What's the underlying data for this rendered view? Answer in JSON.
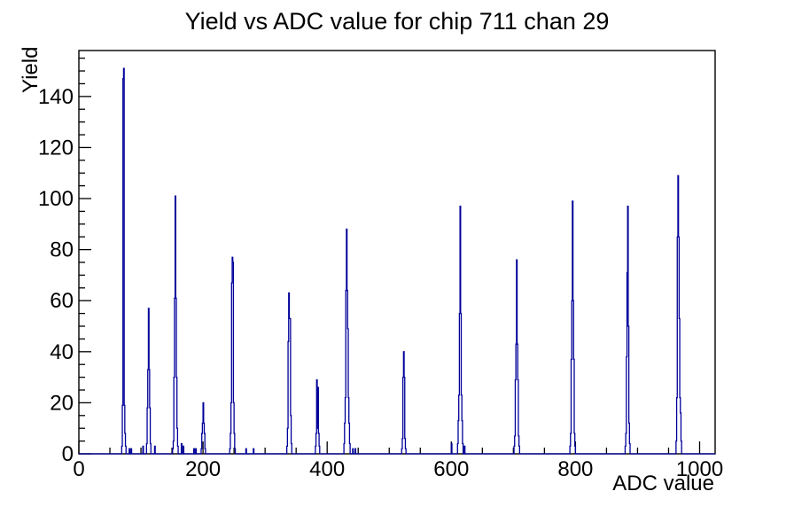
{
  "title": "Yield vs ADC value for chip 711 chan 29",
  "chart_data": {
    "type": "bar",
    "title": "Yield vs ADC value for chip 711 chan 29",
    "xlabel": "ADC value",
    "ylabel": "Yield",
    "xlim": [
      0,
      1025
    ],
    "ylim": [
      0,
      158
    ],
    "x_major_ticks": [
      0,
      200,
      400,
      600,
      800,
      1000
    ],
    "x_minor_step": 50,
    "y_major_ticks": [
      0,
      20,
      40,
      60,
      80,
      100,
      120,
      140
    ],
    "y_minor_step": 5,
    "grid": false,
    "legend": false,
    "line_color": "#00009a",
    "axis_color": "#000000",
    "background": "#ffffff",
    "bins": [
      [
        69,
        3
      ],
      [
        70,
        19
      ],
      [
        71,
        147
      ],
      [
        72,
        151
      ],
      [
        73,
        19
      ],
      [
        74,
        8
      ],
      [
        75,
        3
      ],
      [
        81,
        2
      ],
      [
        84,
        2
      ],
      [
        103,
        3
      ],
      [
        109,
        4
      ],
      [
        110,
        18
      ],
      [
        111,
        33
      ],
      [
        112,
        57
      ],
      [
        113,
        33
      ],
      [
        114,
        18
      ],
      [
        115,
        4
      ],
      [
        122,
        3
      ],
      [
        151,
        2
      ],
      [
        152,
        5
      ],
      [
        153,
        30
      ],
      [
        154,
        61
      ],
      [
        155,
        101
      ],
      [
        156,
        61
      ],
      [
        157,
        30
      ],
      [
        158,
        10
      ],
      [
        159,
        3
      ],
      [
        165,
        4
      ],
      [
        168,
        3
      ],
      [
        185,
        2
      ],
      [
        188,
        2
      ],
      [
        197,
        2
      ],
      [
        198,
        8
      ],
      [
        199,
        12
      ],
      [
        200,
        20
      ],
      [
        201,
        12
      ],
      [
        202,
        8
      ],
      [
        203,
        2
      ],
      [
        243,
        2
      ],
      [
        244,
        8
      ],
      [
        245,
        20
      ],
      [
        246,
        67
      ],
      [
        247,
        77
      ],
      [
        248,
        75
      ],
      [
        249,
        20
      ],
      [
        250,
        8
      ],
      [
        251,
        2
      ],
      [
        269,
        2
      ],
      [
        281,
        2
      ],
      [
        335,
        3
      ],
      [
        336,
        10
      ],
      [
        337,
        44
      ],
      [
        338,
        63
      ],
      [
        339,
        53
      ],
      [
        340,
        53
      ],
      [
        341,
        15
      ],
      [
        342,
        4
      ],
      [
        381,
        3
      ],
      [
        382,
        8
      ],
      [
        383,
        29
      ],
      [
        384,
        10
      ],
      [
        385,
        26
      ],
      [
        386,
        8
      ],
      [
        387,
        3
      ],
      [
        427,
        4
      ],
      [
        428,
        12
      ],
      [
        429,
        22
      ],
      [
        430,
        64
      ],
      [
        431,
        88
      ],
      [
        432,
        64
      ],
      [
        433,
        49
      ],
      [
        434,
        22
      ],
      [
        435,
        12
      ],
      [
        436,
        4
      ],
      [
        441,
        2
      ],
      [
        445,
        2
      ],
      [
        520,
        2
      ],
      [
        521,
        6
      ],
      [
        522,
        30
      ],
      [
        523,
        40
      ],
      [
        524,
        30
      ],
      [
        525,
        6
      ],
      [
        526,
        2
      ],
      [
        600,
        4
      ],
      [
        610,
        4
      ],
      [
        611,
        13
      ],
      [
        612,
        23
      ],
      [
        613,
        55
      ],
      [
        614,
        97
      ],
      [
        615,
        55
      ],
      [
        616,
        23
      ],
      [
        617,
        13
      ],
      [
        618,
        4
      ],
      [
        620,
        3
      ],
      [
        621,
        3
      ],
      [
        701,
        3
      ],
      [
        702,
        7
      ],
      [
        703,
        29
      ],
      [
        704,
        43
      ],
      [
        705,
        76
      ],
      [
        706,
        43
      ],
      [
        707,
        29
      ],
      [
        708,
        7
      ],
      [
        709,
        3
      ],
      [
        791,
        3
      ],
      [
        792,
        8
      ],
      [
        793,
        37
      ],
      [
        794,
        60
      ],
      [
        795,
        99
      ],
      [
        796,
        60
      ],
      [
        797,
        37
      ],
      [
        798,
        8
      ],
      [
        799,
        3
      ],
      [
        880,
        3
      ],
      [
        881,
        8
      ],
      [
        882,
        38
      ],
      [
        883,
        71
      ],
      [
        884,
        97
      ],
      [
        885,
        50
      ],
      [
        886,
        12
      ],
      [
        887,
        4
      ],
      [
        962,
        5
      ],
      [
        963,
        22
      ],
      [
        964,
        85
      ],
      [
        965,
        109
      ],
      [
        966,
        85
      ],
      [
        967,
        53
      ],
      [
        968,
        22
      ],
      [
        969,
        16
      ],
      [
        970,
        5
      ]
    ]
  }
}
